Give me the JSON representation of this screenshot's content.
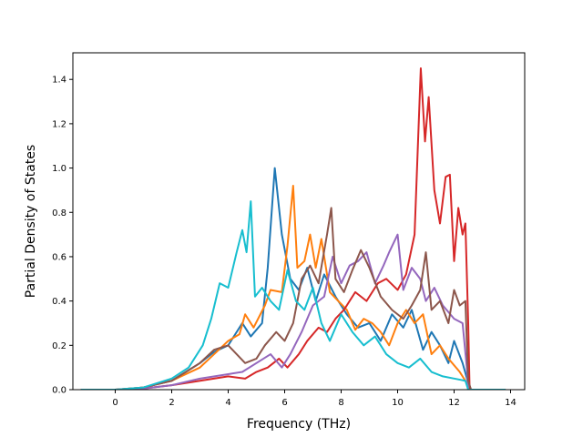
{
  "chart_data": {
    "type": "line",
    "title": "",
    "xlabel": "Frequency (THz)",
    "ylabel": "Partial Density of States",
    "xlim": [
      -1.5,
      14.5
    ],
    "ylim": [
      0.0,
      1.52
    ],
    "xticks": [
      0,
      2,
      4,
      6,
      8,
      10,
      12,
      14
    ],
    "yticks": [
      0.0,
      0.2,
      0.4,
      0.6,
      0.8,
      1.0,
      1.2,
      1.4
    ],
    "xtick_labels": [
      "0",
      "2",
      "4",
      "6",
      "8",
      "10",
      "12",
      "14"
    ],
    "ytick_labels": [
      "0.0",
      "0.2",
      "0.4",
      "0.6",
      "0.8",
      "1.0",
      "1.2",
      "1.4"
    ],
    "grid": false,
    "legend": "none",
    "series": [
      {
        "color": "#1f77b4",
        "points": [
          [
            -1.2,
            0
          ],
          [
            0,
            0
          ],
          [
            1,
            0.01
          ],
          [
            2,
            0.04
          ],
          [
            3,
            0.12
          ],
          [
            3.5,
            0.17
          ],
          [
            4,
            0.2
          ],
          [
            4.5,
            0.3
          ],
          [
            4.8,
            0.24
          ],
          [
            5.2,
            0.3
          ],
          [
            5.4,
            0.55
          ],
          [
            5.65,
            1.0
          ],
          [
            5.9,
            0.7
          ],
          [
            6.2,
            0.5
          ],
          [
            6.5,
            0.45
          ],
          [
            6.8,
            0.55
          ],
          [
            7.1,
            0.4
          ],
          [
            7.4,
            0.52
          ],
          [
            7.8,
            0.42
          ],
          [
            8.2,
            0.34
          ],
          [
            8.6,
            0.28
          ],
          [
            9,
            0.3
          ],
          [
            9.4,
            0.22
          ],
          [
            9.8,
            0.34
          ],
          [
            10.2,
            0.28
          ],
          [
            10.5,
            0.36
          ],
          [
            10.9,
            0.18
          ],
          [
            11.2,
            0.26
          ],
          [
            11.5,
            0.2
          ],
          [
            11.8,
            0.12
          ],
          [
            12,
            0.22
          ],
          [
            12.3,
            0.12
          ],
          [
            12.5,
            0.03
          ],
          [
            12.6,
            0
          ],
          [
            13.8,
            0
          ]
        ]
      },
      {
        "color": "#ff7f0e",
        "points": [
          [
            -1.2,
            0
          ],
          [
            0,
            0
          ],
          [
            1,
            0.01
          ],
          [
            2,
            0.04
          ],
          [
            3,
            0.1
          ],
          [
            3.5,
            0.16
          ],
          [
            4,
            0.22
          ],
          [
            4.4,
            0.25
          ],
          [
            4.6,
            0.34
          ],
          [
            4.9,
            0.28
          ],
          [
            5.3,
            0.38
          ],
          [
            5.5,
            0.45
          ],
          [
            5.9,
            0.44
          ],
          [
            6.1,
            0.65
          ],
          [
            6.3,
            0.92
          ],
          [
            6.45,
            0.55
          ],
          [
            6.7,
            0.58
          ],
          [
            6.9,
            0.7
          ],
          [
            7.1,
            0.55
          ],
          [
            7.3,
            0.68
          ],
          [
            7.6,
            0.44
          ],
          [
            7.9,
            0.4
          ],
          [
            8.2,
            0.36
          ],
          [
            8.5,
            0.27
          ],
          [
            8.8,
            0.32
          ],
          [
            9.1,
            0.3
          ],
          [
            9.4,
            0.26
          ],
          [
            9.7,
            0.2
          ],
          [
            10,
            0.3
          ],
          [
            10.3,
            0.36
          ],
          [
            10.6,
            0.3
          ],
          [
            10.9,
            0.34
          ],
          [
            11.2,
            0.16
          ],
          [
            11.5,
            0.2
          ],
          [
            11.8,
            0.14
          ],
          [
            12.2,
            0.08
          ],
          [
            12.4,
            0.04
          ],
          [
            12.6,
            0
          ],
          [
            13.8,
            0
          ]
        ]
      },
      {
        "color": "#d62728",
        "points": [
          [
            -1.2,
            0
          ],
          [
            0,
            0
          ],
          [
            1,
            0.005
          ],
          [
            2,
            0.02
          ],
          [
            3,
            0.04
          ],
          [
            4,
            0.06
          ],
          [
            4.6,
            0.05
          ],
          [
            5,
            0.08
          ],
          [
            5.4,
            0.1
          ],
          [
            5.8,
            0.14
          ],
          [
            6.1,
            0.1
          ],
          [
            6.5,
            0.16
          ],
          [
            6.8,
            0.22
          ],
          [
            7.2,
            0.28
          ],
          [
            7.5,
            0.26
          ],
          [
            7.8,
            0.32
          ],
          [
            8.1,
            0.36
          ],
          [
            8.5,
            0.44
          ],
          [
            8.9,
            0.4
          ],
          [
            9.3,
            0.48
          ],
          [
            9.6,
            0.5
          ],
          [
            10,
            0.45
          ],
          [
            10.3,
            0.52
          ],
          [
            10.6,
            0.7
          ],
          [
            10.82,
            1.45
          ],
          [
            10.97,
            1.12
          ],
          [
            11.1,
            1.32
          ],
          [
            11.3,
            0.9
          ],
          [
            11.5,
            0.75
          ],
          [
            11.7,
            0.96
          ],
          [
            11.85,
            0.97
          ],
          [
            12.0,
            0.58
          ],
          [
            12.15,
            0.82
          ],
          [
            12.3,
            0.7
          ],
          [
            12.4,
            0.75
          ],
          [
            12.5,
            0.3
          ],
          [
            12.55,
            0
          ],
          [
            13.8,
            0
          ]
        ]
      },
      {
        "color": "#9467bd",
        "points": [
          [
            -1.2,
            0
          ],
          [
            0,
            0
          ],
          [
            1,
            0.005
          ],
          [
            2,
            0.02
          ],
          [
            3,
            0.05
          ],
          [
            4,
            0.07
          ],
          [
            4.5,
            0.08
          ],
          [
            5,
            0.12
          ],
          [
            5.5,
            0.16
          ],
          [
            5.9,
            0.1
          ],
          [
            6.2,
            0.16
          ],
          [
            6.6,
            0.26
          ],
          [
            7,
            0.38
          ],
          [
            7.4,
            0.42
          ],
          [
            7.7,
            0.6
          ],
          [
            8,
            0.48
          ],
          [
            8.3,
            0.56
          ],
          [
            8.6,
            0.58
          ],
          [
            8.9,
            0.62
          ],
          [
            9.2,
            0.48
          ],
          [
            9.5,
            0.56
          ],
          [
            9.7,
            0.62
          ],
          [
            10,
            0.7
          ],
          [
            10.2,
            0.45
          ],
          [
            10.5,
            0.55
          ],
          [
            10.8,
            0.5
          ],
          [
            11,
            0.4
          ],
          [
            11.3,
            0.46
          ],
          [
            11.6,
            0.38
          ],
          [
            12,
            0.32
          ],
          [
            12.3,
            0.3
          ],
          [
            12.45,
            0.1
          ],
          [
            12.5,
            0
          ],
          [
            13.8,
            0
          ]
        ]
      },
      {
        "color": "#8c564b",
        "points": [
          [
            -1.2,
            0
          ],
          [
            0,
            0
          ],
          [
            1,
            0.01
          ],
          [
            2,
            0.04
          ],
          [
            3,
            0.12
          ],
          [
            3.5,
            0.18
          ],
          [
            4,
            0.2
          ],
          [
            4.3,
            0.16
          ],
          [
            4.6,
            0.12
          ],
          [
            5,
            0.14
          ],
          [
            5.3,
            0.2
          ],
          [
            5.7,
            0.26
          ],
          [
            6,
            0.22
          ],
          [
            6.3,
            0.3
          ],
          [
            6.6,
            0.5
          ],
          [
            6.9,
            0.56
          ],
          [
            7.2,
            0.48
          ],
          [
            7.5,
            0.7
          ],
          [
            7.65,
            0.82
          ],
          [
            7.8,
            0.5
          ],
          [
            8.1,
            0.44
          ],
          [
            8.4,
            0.54
          ],
          [
            8.7,
            0.63
          ],
          [
            9,
            0.55
          ],
          [
            9.4,
            0.42
          ],
          [
            9.8,
            0.36
          ],
          [
            10.2,
            0.32
          ],
          [
            10.5,
            0.38
          ],
          [
            10.8,
            0.45
          ],
          [
            11,
            0.62
          ],
          [
            11.2,
            0.36
          ],
          [
            11.5,
            0.4
          ],
          [
            11.8,
            0.3
          ],
          [
            12,
            0.45
          ],
          [
            12.2,
            0.38
          ],
          [
            12.4,
            0.4
          ],
          [
            12.5,
            0.04
          ],
          [
            12.6,
            0
          ],
          [
            13.8,
            0
          ]
        ]
      },
      {
        "color": "#17becf",
        "points": [
          [
            -1.2,
            0
          ],
          [
            0,
            0
          ],
          [
            1,
            0.01
          ],
          [
            2,
            0.05
          ],
          [
            2.6,
            0.1
          ],
          [
            3.1,
            0.2
          ],
          [
            3.4,
            0.32
          ],
          [
            3.7,
            0.48
          ],
          [
            4.0,
            0.46
          ],
          [
            4.3,
            0.62
          ],
          [
            4.5,
            0.72
          ],
          [
            4.65,
            0.62
          ],
          [
            4.8,
            0.85
          ],
          [
            4.95,
            0.42
          ],
          [
            5.2,
            0.46
          ],
          [
            5.5,
            0.4
          ],
          [
            5.8,
            0.36
          ],
          [
            6.1,
            0.54
          ],
          [
            6.4,
            0.4
          ],
          [
            6.7,
            0.36
          ],
          [
            7,
            0.46
          ],
          [
            7.3,
            0.3
          ],
          [
            7.6,
            0.22
          ],
          [
            8,
            0.34
          ],
          [
            8.4,
            0.26
          ],
          [
            8.8,
            0.2
          ],
          [
            9.2,
            0.24
          ],
          [
            9.6,
            0.16
          ],
          [
            10,
            0.12
          ],
          [
            10.4,
            0.1
          ],
          [
            10.8,
            0.14
          ],
          [
            11.2,
            0.08
          ],
          [
            11.6,
            0.06
          ],
          [
            12,
            0.05
          ],
          [
            12.4,
            0.04
          ],
          [
            12.5,
            0
          ],
          [
            13.8,
            0
          ]
        ]
      }
    ]
  }
}
